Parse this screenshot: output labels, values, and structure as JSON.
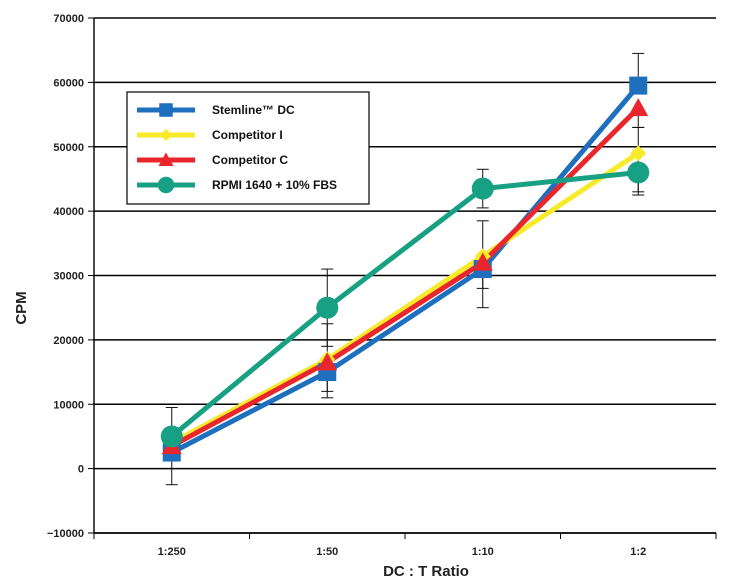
{
  "chart_data": {
    "type": "line",
    "title": "",
    "xlabel": "DC : T Ratio",
    "ylabel": "CPM",
    "categories": [
      "1:250",
      "1:50",
      "1:10",
      "1:2"
    ],
    "ylim": [
      -10000,
      70000
    ],
    "yticks": [
      -10000,
      0,
      10000,
      20000,
      30000,
      40000,
      50000,
      60000,
      70000
    ],
    "ytick_labels": [
      "−10000",
      "0",
      "10000",
      "20000",
      "30000",
      "40000",
      "50000",
      "60000",
      "70000"
    ],
    "grid": "horizontal",
    "legend_position": "top-left",
    "series": [
      {
        "name": "Stemline™ DC",
        "color": "#1f6fbf",
        "marker": "square",
        "values": [
          2500,
          15000,
          31000,
          59500
        ],
        "err_low": [
          null,
          11000,
          25000,
          null
        ],
        "err_high": [
          null,
          null,
          null,
          64500
        ]
      },
      {
        "name": "Competitor I",
        "color": "#f7ea2a",
        "marker": "diamond",
        "values": [
          4000,
          17000,
          33000,
          49000
        ],
        "err_low": [
          null,
          null,
          null,
          43000
        ],
        "err_high": [
          null,
          null,
          null,
          null
        ]
      },
      {
        "name": "Competitor C",
        "color": "#e8262b",
        "marker": "triangle",
        "values": [
          3500,
          16500,
          32000,
          56000
        ],
        "err_low": [
          -2500,
          12000,
          28000,
          53000
        ],
        "err_high": [
          9500,
          22500,
          38500,
          null
        ]
      },
      {
        "name": "RPMI 1640 + 10% FBS",
        "color": "#17a083",
        "marker": "circle",
        "values": [
          5000,
          25000,
          43500,
          46000
        ],
        "err_low": [
          null,
          19000,
          40500,
          42500
        ],
        "err_high": [
          null,
          31000,
          46500,
          53000
        ]
      }
    ]
  }
}
